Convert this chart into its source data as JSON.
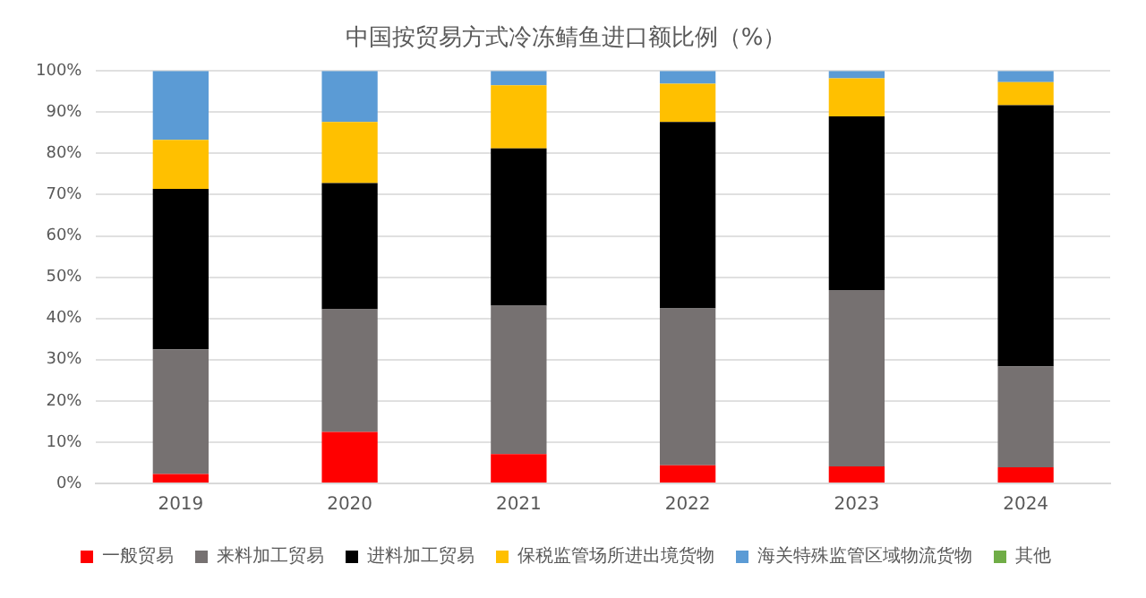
{
  "chart_data": {
    "type": "bar",
    "title": "中国按贸易方式冷冻鲭鱼进口额比例（%）",
    "categories": [
      "2019",
      "2020",
      "2021",
      "2022",
      "2023",
      "2024"
    ],
    "stacked": true,
    "series": [
      {
        "name": "一般贸易",
        "color": "#ff0000",
        "values": [
          2.3,
          12.5,
          7.1,
          4.4,
          4.1,
          3.9
        ]
      },
      {
        "name": "来料加工贸易",
        "color": "#767171",
        "values": [
          30.2,
          29.7,
          36.0,
          38.0,
          42.8,
          24.5
        ]
      },
      {
        "name": "进料加工贸易",
        "color": "#000000",
        "values": [
          38.9,
          30.6,
          38.1,
          45.2,
          42.1,
          63.3
        ]
      },
      {
        "name": "保税监管场所进出境货物",
        "color": "#ffc000",
        "values": [
          11.9,
          14.8,
          15.3,
          9.3,
          9.2,
          5.6
        ]
      },
      {
        "name": "海关特殊监管区域物流货物",
        "color": "#5b9bd5",
        "values": [
          16.7,
          12.4,
          3.5,
          3.1,
          1.8,
          2.7
        ]
      },
      {
        "name": "其他",
        "color": "#70ad47",
        "values": [
          0,
          0,
          0,
          0,
          0,
          0
        ]
      }
    ],
    "ylim": [
      0,
      100
    ],
    "yticks": [
      {
        "value": 0,
        "label": "0%"
      },
      {
        "value": 10,
        "label": "10%"
      },
      {
        "value": 20,
        "label": "20%"
      },
      {
        "value": 30,
        "label": "30%"
      },
      {
        "value": 40,
        "label": "40%"
      },
      {
        "value": 50,
        "label": "50%"
      },
      {
        "value": 60,
        "label": "60%"
      },
      {
        "value": 70,
        "label": "70%"
      },
      {
        "value": 80,
        "label": "80%"
      },
      {
        "value": 90,
        "label": "90%"
      },
      {
        "value": 100,
        "label": "100%"
      }
    ],
    "grid": "y",
    "legend": "bottom"
  }
}
